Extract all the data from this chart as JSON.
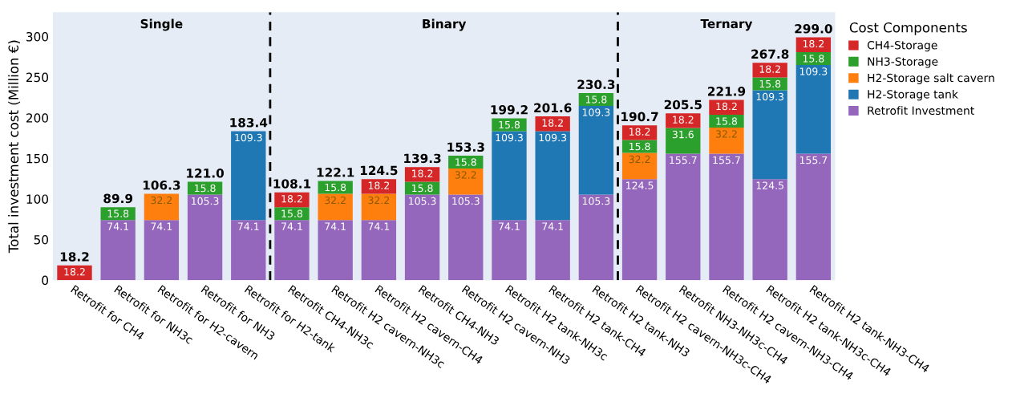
{
  "chart_data": {
    "type": "bar",
    "stacked": true,
    "ylabel": "Total investment cost (Million €)",
    "legend_title": "Cost Components",
    "legend": "top right",
    "categories": [
      "Retrofit for CH4",
      "Retrofit for NH3c",
      "Retrofit for H2-cavern",
      "Retrofit for NH3",
      "Retrofit for H2-tank",
      "Retrofit CH4-NH3c",
      "Retrofit H2 cavern-NH3c",
      "Retrofit H2 cavern-CH4",
      "Retrofit CH4-NH3",
      "Retrofit H2 cavern-NH3",
      "Retrofit H2 tank-NH3c",
      "Retrofit H2 tank-CH4",
      "Retrofit H2 tank-NH3",
      "Retrofit H2 cavern-NH3c-CH4",
      "Retrofit NH3-NH3c-CH4",
      "Retrofit H2 cavern-NH3-CH4",
      "Retrofit H2 tank-NH3c-CH4",
      "Retrofit H2 tank-NH3-CH4"
    ],
    "series": [
      {
        "name": "Retrofit Investment",
        "color": "#9467bd",
        "values": [
          null,
          74.1,
          74.1,
          105.3,
          74.1,
          74.1,
          74.1,
          74.1,
          105.3,
          105.3,
          74.1,
          74.1,
          105.3,
          124.5,
          155.7,
          155.7,
          124.5,
          155.7
        ]
      },
      {
        "name": "H2-Storage tank",
        "color": "#1f77b4",
        "values": [
          null,
          null,
          null,
          null,
          109.3,
          null,
          null,
          null,
          null,
          null,
          109.3,
          109.3,
          109.3,
          null,
          null,
          null,
          109.3,
          109.3
        ]
      },
      {
        "name": "H2-Storage salt cavern",
        "color": "#ff7f0e",
        "values": [
          null,
          null,
          32.2,
          null,
          null,
          null,
          32.2,
          32.2,
          null,
          32.2,
          null,
          null,
          null,
          32.2,
          null,
          32.2,
          null,
          null
        ]
      },
      {
        "name": "NH3-Storage",
        "color": "#2ca02c",
        "values": [
          null,
          15.8,
          null,
          15.8,
          null,
          15.8,
          15.8,
          null,
          15.8,
          15.8,
          15.8,
          null,
          15.8,
          15.8,
          31.6,
          15.8,
          15.8,
          15.8
        ]
      },
      {
        "name": "CH4-Storage",
        "color": "#d62728",
        "values": [
          18.2,
          null,
          null,
          null,
          null,
          18.2,
          null,
          18.2,
          18.2,
          null,
          null,
          18.2,
          null,
          18.2,
          18.2,
          18.2,
          18.2,
          18.2
        ]
      }
    ],
    "data_labels": true,
    "totals": [
      "18.2",
      "89.9",
      "106.3",
      "121.0",
      "183.4",
      "108.1",
      "122.1",
      "124.5",
      "139.3",
      "153.3",
      "199.2",
      "201.6",
      "230.3",
      "190.7",
      "205.5",
      "221.9",
      "267.8",
      "299.0"
    ],
    "ylim": [
      0,
      330
    ],
    "yticks": [
      0,
      50,
      100,
      150,
      200,
      250,
      300
    ],
    "grid": false,
    "annotations": [
      "Single",
      "Binary",
      "Ternary"
    ]
  }
}
